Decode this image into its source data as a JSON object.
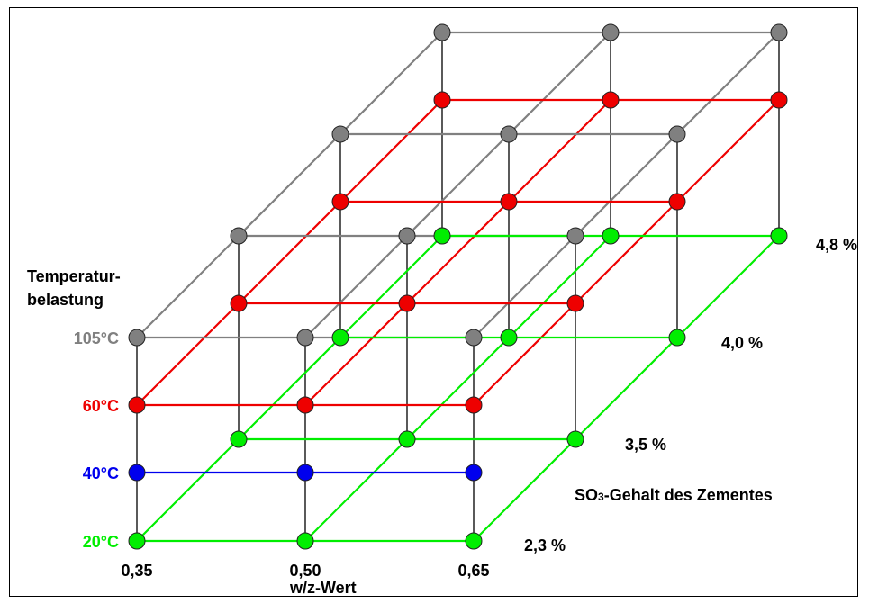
{
  "y_axis": {
    "title_line1": "Temperatur-",
    "title_line2": "belastung",
    "levels": [
      {
        "label": "20°C",
        "color": "#00ee00"
      },
      {
        "label": "40°C",
        "color": "#0000ee"
      },
      {
        "label": "60°C",
        "color": "#ee0000"
      },
      {
        "label": "105°C",
        "color": "#808080"
      }
    ]
  },
  "x_axis": {
    "title": "w/z-Wert",
    "ticks": [
      "0,35",
      "0,50",
      "0,65"
    ]
  },
  "z_axis": {
    "title_prefix": "SO",
    "title_sub": "3",
    "title_suffix": "-Gehalt des Zementes",
    "ticks": [
      "2,3 %",
      "3,5 %",
      "4,0 %",
      "4,8 %"
    ]
  },
  "grid": {
    "points": [
      {
        "z": 0,
        "levels": [
          "20°C",
          "40°C",
          "60°C",
          "105°C"
        ]
      },
      {
        "z": 1,
        "levels": [
          "20°C",
          "60°C",
          "105°C"
        ]
      },
      {
        "z": 2,
        "levels": [
          "20°C",
          "60°C",
          "105°C"
        ]
      },
      {
        "z": 3,
        "levels": [
          "20°C",
          "60°C",
          "105°C"
        ]
      }
    ]
  }
}
